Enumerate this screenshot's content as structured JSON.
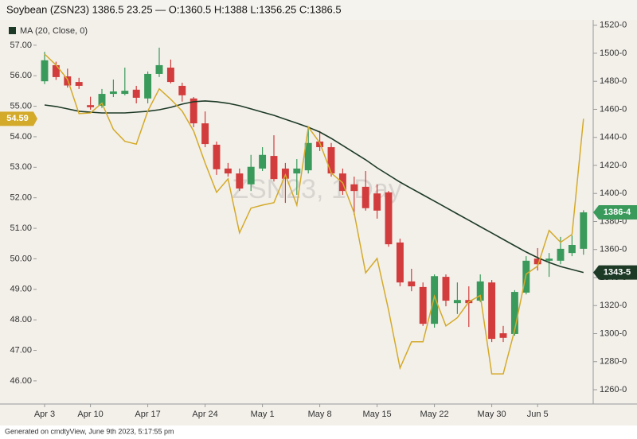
{
  "chart_data": {
    "type": "candlestick",
    "title": "Soybean (ZSN23) 1386.5 23.25 — O:1360.5 H:1388 L:1356.25 C:1386.5",
    "watermark": "ZSN23, 1 Day",
    "footer": "Generated on cmdtyView, June 9th 2023, 5:17:55 pm",
    "categories": [
      "Apr 3",
      null,
      null,
      null,
      "Apr 10",
      null,
      null,
      null,
      null,
      "Apr 17",
      null,
      null,
      null,
      null,
      "Apr 24",
      null,
      null,
      null,
      null,
      "May 1",
      null,
      null,
      null,
      null,
      "May 8",
      null,
      null,
      null,
      null,
      "May 15",
      null,
      null,
      null,
      null,
      "May 22",
      null,
      null,
      null,
      null,
      "May 30",
      null,
      null,
      null,
      "Jun 5",
      null,
      null,
      null,
      null
    ],
    "candles": {
      "axis": "y2",
      "up_color": "#3a9a5b",
      "down_color": "#d23c3c",
      "last_label": "1386-4",
      "open": [
        1480,
        1491.5,
        1483.5,
        1479.5,
        1463,
        1462.5,
        1471,
        1471,
        1474,
        1467.75,
        1485.25,
        1489.75,
        1476.75,
        1467.75,
        1450,
        1434.75,
        1417.75,
        1414.25,
        1406.5,
        1417.75,
        1426.75,
        1417.75,
        1414.25,
        1416.5,
        1437,
        1433,
        1414.25,
        1406.5,
        1404.75,
        1400,
        1400.75,
        1365,
        1337.25,
        1333.25,
        1307,
        1340.5,
        1321.75,
        1324,
        1323.5,
        1336.5,
        1300.25,
        1299.75,
        1329.25,
        1353.5,
        1352,
        1352,
        1357.5,
        1360.5
      ],
      "high": [
        1501,
        1494,
        1489,
        1482.5,
        1469,
        1474.5,
        1481.25,
        1489.75,
        1476.75,
        1487,
        1504,
        1495.5,
        1479,
        1468.75,
        1458.5,
        1437,
        1421.75,
        1417.75,
        1427.5,
        1433,
        1441.5,
        1421.75,
        1424.5,
        1447.25,
        1444.5,
        1436,
        1417.75,
        1412,
        1416,
        1406.5,
        1401.75,
        1367.75,
        1346.25,
        1336.5,
        1342.25,
        1342.25,
        1336.5,
        1333.75,
        1342.25,
        1338.25,
        1305.5,
        1331,
        1355.25,
        1361,
        1357.5,
        1369,
        1370,
        1388
      ],
      "low": [
        1478,
        1481,
        1475.5,
        1474.5,
        1459.75,
        1461,
        1468.75,
        1470,
        1464.25,
        1464.25,
        1483,
        1478.5,
        1465.5,
        1447.25,
        1433,
        1413.25,
        1412,
        1401.75,
        1401.75,
        1416,
        1408.5,
        1393.25,
        1399,
        1414.25,
        1430.25,
        1412,
        1399,
        1384.75,
        1387.75,
        1382,
        1362,
        1333.75,
        1330.25,
        1305.5,
        1304.25,
        1319.5,
        1314,
        1304.75,
        1322.5,
        1294,
        1294,
        1298.5,
        1328,
        1345,
        1340.5,
        1349.5,
        1355.25,
        1356.25
      ],
      "close": [
        1495,
        1483,
        1477,
        1476.75,
        1461.5,
        1471,
        1472.75,
        1473.25,
        1468.25,
        1485.25,
        1491.5,
        1479.5,
        1470,
        1450,
        1435.25,
        1417.25,
        1414.25,
        1403.5,
        1419,
        1427.5,
        1410.25,
        1410.5,
        1417.75,
        1436,
        1433,
        1414.25,
        1401.75,
        1401.75,
        1389.5,
        1387.75,
        1363.75,
        1336.5,
        1333.75,
        1307,
        1341,
        1323.5,
        1324,
        1321.75,
        1337.25,
        1296.25,
        1297,
        1329.75,
        1352,
        1349.5,
        1353.5,
        1360.5,
        1363.25,
        1386.5
      ]
    },
    "series": [
      {
        "name": "MA (20, Close, 0)",
        "color": "#1d3a26",
        "axis": "y2",
        "last_label": "1343-5",
        "values": [
          1463.1,
          1462,
          1460.3,
          1458.6,
          1458,
          1457.4,
          1457.4,
          1457.4,
          1458,
          1458.6,
          1459.7,
          1461.4,
          1463.7,
          1465.4,
          1466,
          1465.4,
          1464.3,
          1462.6,
          1460.3,
          1458,
          1455.7,
          1452.9,
          1450.1,
          1447.2,
          1443.8,
          1439.3,
          1434.2,
          1429.1,
          1424,
          1418.3,
          1413.2,
          1408.1,
          1403.5,
          1399,
          1394.5,
          1390,
          1385.4,
          1380.9,
          1376.3,
          1371.8,
          1367.2,
          1362.7,
          1358.2,
          1354.2,
          1350.8,
          1347.9,
          1345.7,
          1343.6
        ]
      },
      {
        "color": "#d4aa2a",
        "axis": "y",
        "values": [
          56.71,
          56.35,
          55.88,
          54.76,
          54.78,
          55.1,
          54.24,
          53.85,
          53.76,
          54.84,
          55.57,
          55.23,
          54.84,
          54.19,
          53.14,
          52.18,
          52.62,
          50.85,
          51.66,
          51.76,
          51.84,
          52.75,
          51.76,
          54.32,
          53.8,
          52.81,
          52.49,
          51.5,
          49.54,
          50.01,
          48.32,
          46.42,
          47.28,
          47.28,
          48.77,
          47.8,
          48.07,
          48.59,
          48.8,
          46.23,
          46.23,
          47.67,
          49.5,
          49.76,
          50.93,
          50.54,
          50.8,
          54.59
        ]
      }
    ],
    "ylim": [
      45.32,
      57.83
    ],
    "yticks": [
      {
        "value": 46,
        "label": "46.00"
      },
      {
        "value": 47,
        "label": "47.00"
      },
      {
        "value": 48,
        "label": "48.00"
      },
      {
        "value": 49,
        "label": "49.00"
      },
      {
        "value": 50,
        "label": "50.00"
      },
      {
        "value": 51,
        "label": "51.00"
      },
      {
        "value": 52,
        "label": "52.00"
      },
      {
        "value": 53,
        "label": "53.00"
      },
      {
        "value": 54,
        "label": "54.00"
      },
      {
        "value": 55,
        "label": "55.00"
      },
      {
        "value": 56,
        "label": "56.00"
      },
      {
        "value": 57,
        "label": "57.00"
      }
    ],
    "y2lim": [
      1251.5,
      1523.8
    ],
    "y2ticks": [
      {
        "value": 1260,
        "label": "1260-0"
      },
      {
        "value": 1280,
        "label": "1280-0"
      },
      {
        "value": 1300,
        "label": "1300-0"
      },
      {
        "value": 1320,
        "label": "1320-0"
      },
      {
        "value": 1340,
        "label": "1340-0"
      },
      {
        "value": 1360,
        "label": "1360-0"
      },
      {
        "value": 1380,
        "label": "1380-0"
      },
      {
        "value": 1400,
        "label": "1400-0"
      },
      {
        "value": 1420,
        "label": "1420-0"
      },
      {
        "value": 1440,
        "label": "1440-0"
      },
      {
        "value": 1460,
        "label": "1460-0"
      },
      {
        "value": 1480,
        "label": "1480-0"
      },
      {
        "value": 1500,
        "label": "1500-0"
      },
      {
        "value": 1520,
        "label": "1520-0"
      }
    ]
  }
}
